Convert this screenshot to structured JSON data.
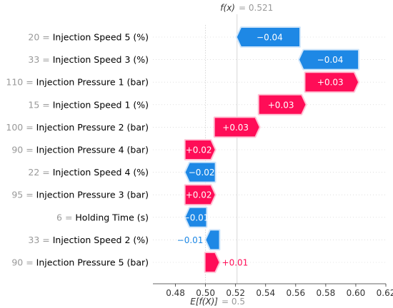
{
  "chart_data": {
    "type": "waterfall",
    "title_fx": {
      "label": "f(x)",
      "value": "= 0.521"
    },
    "base_value": {
      "label": "E[f(X)]",
      "value": "= 0.5"
    },
    "fx": 0.521,
    "ex": 0.5,
    "xlim": [
      0.465,
      0.62
    ],
    "xticks": [
      0.48,
      0.5,
      0.52,
      0.54,
      0.56,
      0.58,
      0.6,
      0.62
    ],
    "xtick_labels": [
      "0.48",
      "0.50",
      "0.52",
      "0.54",
      "0.56",
      "0.58",
      "0.60",
      "0.62"
    ],
    "colors": {
      "positive": "#ff0d57",
      "negative": "#1e88e5",
      "positive_light": "#ffc3d5",
      "negative_light": "#d1e6fa"
    },
    "features": [
      {
        "value": "20",
        "name": "Injection Speed 5 (%)",
        "start": 0.5625,
        "end": 0.521,
        "label": "−0.04"
      },
      {
        "value": "33",
        "name": "Injection Speed 3 (%)",
        "start": 0.6015,
        "end": 0.5625,
        "label": "−0.04"
      },
      {
        "value": "110",
        "name": "Injection Pressure 1 (bar)",
        "start": 0.5665,
        "end": 0.6015,
        "label": "+0.03"
      },
      {
        "value": "15",
        "name": "Injection Speed 1 (%)",
        "start": 0.5357,
        "end": 0.5665,
        "label": "+0.03"
      },
      {
        "value": "100",
        "name": "Injection Pressure 2 (bar)",
        "start": 0.5062,
        "end": 0.5357,
        "label": "+0.03"
      },
      {
        "value": "90",
        "name": "Injection Pressure 4 (bar)",
        "start": 0.4867,
        "end": 0.5062,
        "label": "+0.02"
      },
      {
        "value": "22",
        "name": "Injection Speed 4 (%)",
        "start": 0.5062,
        "end": 0.4867,
        "label": "−0.02"
      },
      {
        "value": "95",
        "name": "Injection Pressure 3 (bar)",
        "start": 0.4867,
        "end": 0.5062,
        "label": "+0.02"
      },
      {
        "value": "6",
        "name": "Holding Time (s)",
        "start": 0.5004,
        "end": 0.4867,
        "label": "−0.01"
      },
      {
        "value": "33",
        "name": "Injection Speed 2 (%)",
        "start": 0.509,
        "end": 0.5004,
        "label": "−0.01"
      },
      {
        "value": "90",
        "name": "Injection Pressure 5 (bar)",
        "start": 0.5,
        "end": 0.509,
        "label": "+0.01"
      }
    ]
  }
}
